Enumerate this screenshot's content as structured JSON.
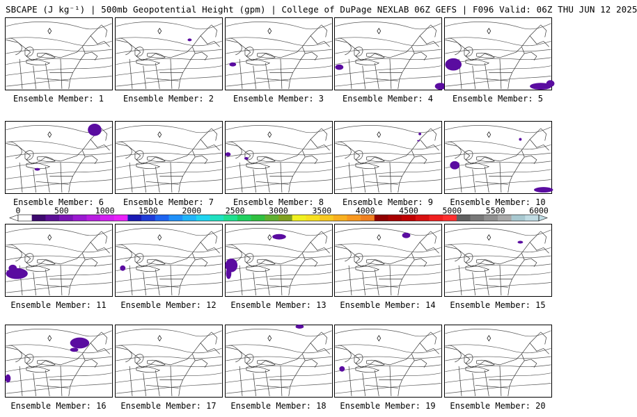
{
  "title": "SBCAPE (J kg⁻¹) | 500mb Geopotential Height (gpm) | College of DuPage NEXLAB 06Z GEFS | F096 Valid: 06Z THU JUN 12 2025",
  "colorbar": {
    "ticks": [
      "0",
      "500",
      "1000",
      "1500",
      "2000",
      "2500",
      "3000",
      "3500",
      "4000",
      "4500",
      "5000",
      "5500",
      "6000"
    ],
    "range": [
      0,
      6000
    ],
    "colors": [
      "#ffffff",
      "#3d0a6e",
      "#5c0f96",
      "#7a14b4",
      "#9a1ad0",
      "#b81ee0",
      "#d21ff0",
      "#e822f8",
      "#1a1ab4",
      "#1e3cd8",
      "#1e64f0",
      "#2090f8",
      "#20b4f8",
      "#20d4f0",
      "#20e0c0",
      "#20e090",
      "#20d060",
      "#30c040",
      "#60b030",
      "#80a020",
      "#f0f020",
      "#f8e020",
      "#f8c820",
      "#f8b020",
      "#f89820",
      "#f08020",
      "#900000",
      "#a80000",
      "#c00000",
      "#d81010",
      "#f02020",
      "#ff3030",
      "#606060",
      "#787878",
      "#909090",
      "#a8a8a8",
      "#a8c8d0",
      "#c0dce4"
    ]
  },
  "members": [
    {
      "label": "Ensemble Member: 1"
    },
    {
      "label": "Ensemble Member: 2"
    },
    {
      "label": "Ensemble Member: 3"
    },
    {
      "label": "Ensemble Member: 4"
    },
    {
      "label": "Ensemble Member: 5"
    },
    {
      "label": "Ensemble Member: 6"
    },
    {
      "label": "Ensemble Member: 7"
    },
    {
      "label": "Ensemble Member: 8"
    },
    {
      "label": "Ensemble Member: 9"
    },
    {
      "label": "Ensemble Member: 10"
    },
    {
      "label": "Ensemble Member: 11"
    },
    {
      "label": "Ensemble Member: 12"
    },
    {
      "label": "Ensemble Member: 13"
    },
    {
      "label": "Ensemble Member: 14"
    },
    {
      "label": "Ensemble Member: 15"
    },
    {
      "label": "Ensemble Member: 16"
    },
    {
      "label": "Ensemble Member: 17"
    },
    {
      "label": "Ensemble Member: 18"
    },
    {
      "label": "Ensemble Member: 19"
    },
    {
      "label": "Ensemble Member: 20"
    }
  ],
  "cape_color": "#5a0ca0",
  "map_line_color": "#333333"
}
